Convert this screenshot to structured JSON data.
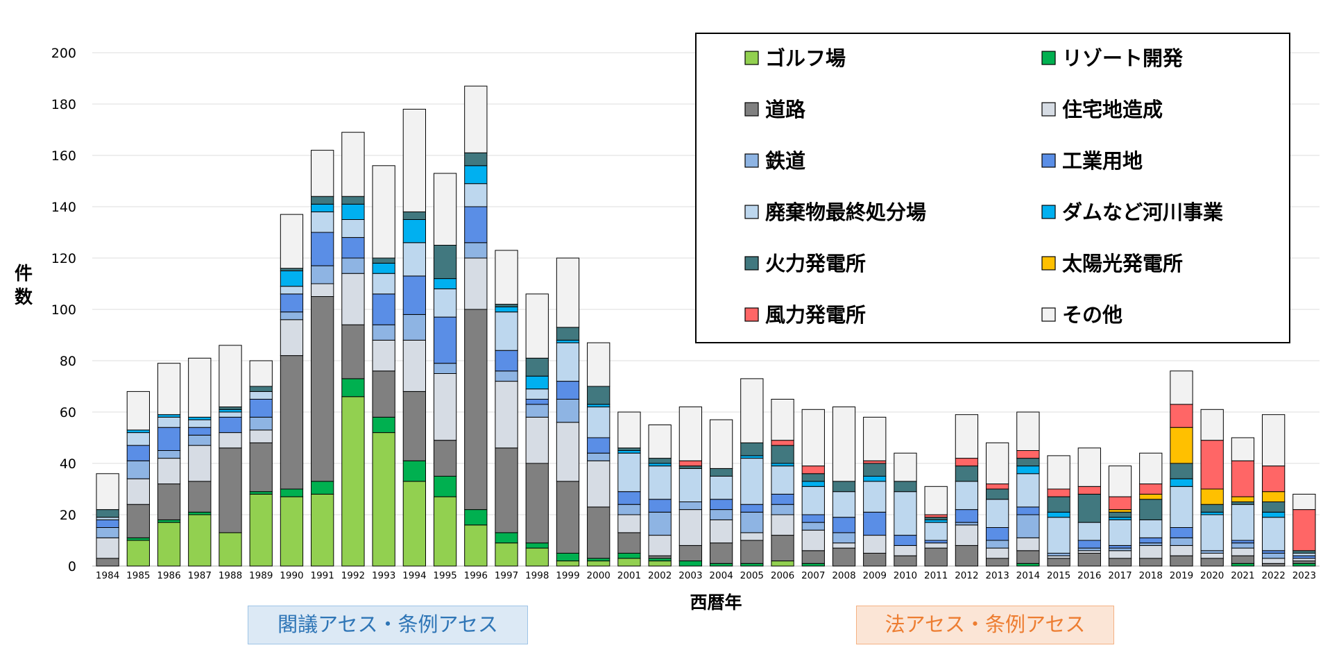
{
  "chart_data": {
    "type": "bar",
    "stacked": true,
    "xlabel": "西暦年",
    "ylabel": "件数",
    "ylim": [
      0,
      200
    ],
    "yticks": [
      0,
      20,
      40,
      60,
      80,
      100,
      120,
      140,
      160,
      180,
      200
    ],
    "grid": true,
    "legend_position": "top-right",
    "categories": [
      "1984",
      "1985",
      "1986",
      "1987",
      "1988",
      "1989",
      "1990",
      "1991",
      "1992",
      "1993",
      "1994",
      "1995",
      "1996",
      "1997",
      "1998",
      "1999",
      "2000",
      "2001",
      "2002",
      "2003",
      "2004",
      "2005",
      "2006",
      "2007",
      "2008",
      "2009",
      "2010",
      "2011",
      "2012",
      "2013",
      "2014",
      "2015",
      "2016",
      "2017",
      "2018",
      "2019",
      "2020",
      "2021",
      "2022",
      "2023"
    ],
    "series": [
      {
        "name": "ゴルフ場",
        "color": "#92d050",
        "values": [
          0,
          10,
          17,
          20,
          13,
          28,
          27,
          28,
          66,
          52,
          33,
          27,
          16,
          9,
          7,
          2,
          2,
          3,
          2,
          0,
          0,
          0,
          2,
          0,
          0,
          0,
          0,
          0,
          0,
          0,
          0,
          0,
          0,
          0,
          0,
          0,
          0,
          0,
          0,
          0
        ]
      },
      {
        "name": "リゾート開発",
        "color": "#00b050",
        "values": [
          0,
          1,
          1,
          1,
          0,
          1,
          3,
          5,
          7,
          6,
          8,
          8,
          6,
          4,
          2,
          3,
          1,
          2,
          1,
          2,
          1,
          1,
          0,
          1,
          0,
          0,
          0,
          0,
          0,
          0,
          1,
          0,
          0,
          0,
          0,
          0,
          0,
          1,
          0,
          1
        ]
      },
      {
        "name": "道路",
        "color": "#808080",
        "values": [
          3,
          13,
          14,
          12,
          33,
          19,
          52,
          72,
          21,
          18,
          27,
          14,
          78,
          33,
          31,
          28,
          20,
          8,
          1,
          6,
          8,
          9,
          10,
          5,
          7,
          5,
          4,
          7,
          8,
          3,
          5,
          3,
          5,
          3,
          3,
          4,
          3,
          3,
          1,
          1
        ]
      },
      {
        "name": "住宅地造成",
        "color": "#d6dce4",
        "values": [
          8,
          10,
          10,
          14,
          6,
          5,
          14,
          5,
          20,
          12,
          20,
          26,
          20,
          26,
          18,
          23,
          18,
          7,
          8,
          14,
          9,
          3,
          8,
          8,
          2,
          7,
          4,
          2,
          8,
          4,
          5,
          1,
          1,
          3,
          5,
          4,
          2,
          3,
          2,
          1
        ]
      },
      {
        "name": "鉄道",
        "color": "#8eb4e3",
        "values": [
          4,
          7,
          3,
          4,
          0,
          5,
          3,
          7,
          6,
          6,
          10,
          4,
          6,
          4,
          5,
          9,
          3,
          4,
          9,
          3,
          4,
          8,
          4,
          3,
          4,
          0,
          0,
          0,
          1,
          3,
          9,
          1,
          1,
          1,
          1,
          3,
          1,
          2,
          2,
          0
        ]
      },
      {
        "name": "工業用地",
        "color": "#5a8ee6",
        "values": [
          3,
          6,
          9,
          3,
          6,
          7,
          7,
          13,
          8,
          12,
          15,
          18,
          14,
          8,
          2,
          7,
          6,
          5,
          5,
          0,
          4,
          3,
          4,
          3,
          6,
          9,
          4,
          1,
          5,
          5,
          3,
          0,
          3,
          1,
          2,
          4,
          0,
          1,
          1,
          1
        ]
      },
      {
        "name": "廃棄物最終処分場",
        "color": "#bdd7ee",
        "values": [
          1,
          5,
          4,
          3,
          2,
          3,
          3,
          8,
          7,
          8,
          13,
          11,
          9,
          15,
          4,
          15,
          12,
          15,
          13,
          13,
          9,
          18,
          11,
          11,
          10,
          12,
          17,
          7,
          11,
          11,
          13,
          14,
          7,
          10,
          7,
          16,
          14,
          14,
          13,
          1
        ]
      },
      {
        "name": "ダムなど河川事業",
        "color": "#00b0f0",
        "values": [
          0,
          1,
          1,
          1,
          1,
          0,
          6,
          3,
          6,
          4,
          9,
          4,
          7,
          2,
          5,
          1,
          1,
          1,
          1,
          0,
          0,
          1,
          1,
          2,
          0,
          2,
          0,
          1,
          0,
          0,
          3,
          2,
          0,
          1,
          0,
          3,
          1,
          0,
          2,
          0
        ]
      },
      {
        "name": "火力発電所",
        "color": "#41787f",
        "values": [
          3,
          0,
          0,
          0,
          1,
          2,
          1,
          3,
          3,
          2,
          3,
          13,
          5,
          1,
          7,
          5,
          7,
          1,
          2,
          1,
          3,
          5,
          7,
          3,
          4,
          5,
          4,
          1,
          6,
          4,
          3,
          6,
          11,
          2,
          8,
          6,
          3,
          1,
          4,
          1
        ]
      },
      {
        "name": "太陽光発電所",
        "color": "#ffc000",
        "values": [
          0,
          0,
          0,
          0,
          0,
          0,
          0,
          0,
          0,
          0,
          0,
          0,
          0,
          0,
          0,
          0,
          0,
          0,
          0,
          0,
          0,
          0,
          0,
          0,
          0,
          0,
          0,
          0,
          0,
          0,
          0,
          0,
          0,
          1,
          2,
          14,
          6,
          2,
          4,
          0
        ]
      },
      {
        "name": "風力発電所",
        "color": "#ff6666",
        "values": [
          0,
          0,
          0,
          0,
          0,
          0,
          0,
          0,
          0,
          0,
          0,
          0,
          0,
          0,
          0,
          0,
          0,
          0,
          0,
          2,
          0,
          0,
          2,
          3,
          0,
          1,
          0,
          1,
          3,
          2,
          3,
          3,
          3,
          5,
          4,
          9,
          19,
          14,
          10,
          16
        ]
      },
      {
        "name": "その他",
        "color": "#f2f2f2",
        "values": [
          14,
          15,
          20,
          23,
          24,
          10,
          21,
          18,
          25,
          36,
          40,
          28,
          26,
          21,
          25,
          27,
          17,
          14,
          13,
          21,
          19,
          25,
          16,
          22,
          29,
          17,
          11,
          11,
          17,
          16,
          15,
          13,
          15,
          12,
          12,
          13,
          12,
          9,
          20,
          6
        ]
      }
    ],
    "annotations": [
      {
        "text": "閣議アセス・条例アセス"
      },
      {
        "text": "法アセス・条例アセス"
      }
    ]
  }
}
